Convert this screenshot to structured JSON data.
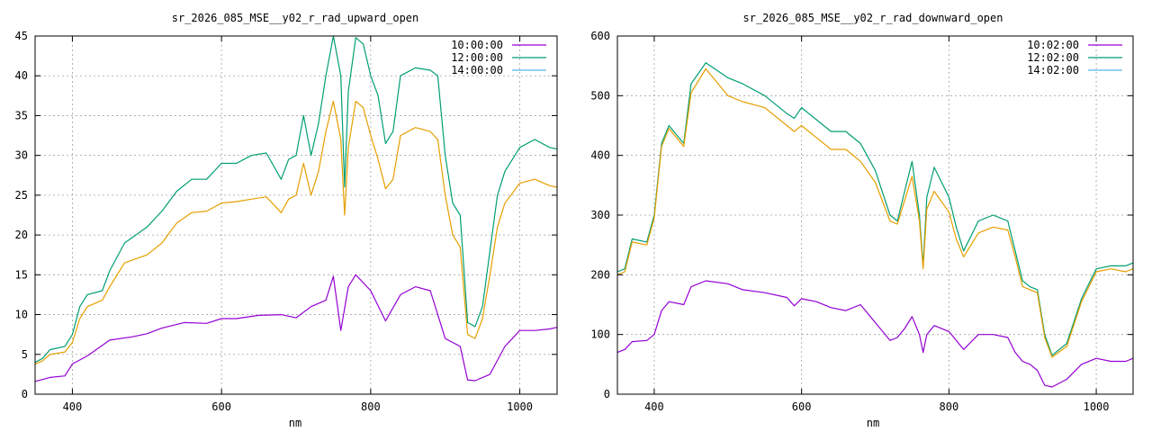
{
  "colors": {
    "series1": "#9400d3",
    "series2": "#009e73",
    "series3": "#56b4e9",
    "orange": "#e69f00"
  },
  "chart_data": [
    {
      "type": "line",
      "title": "sr_2026_085_MSE__y02_r_rad_upward_open",
      "xlabel": "nm",
      "ylabel": "",
      "xlim": [
        350,
        1050
      ],
      "ylim": [
        0,
        45
      ],
      "xticks": [
        400,
        600,
        800,
        1000
      ],
      "yticks": [
        0,
        5,
        10,
        15,
        20,
        25,
        30,
        35,
        40,
        45
      ],
      "grid": true,
      "legend_position": "top-right",
      "legend": [
        "10:00:00",
        "12:00:00",
        "14:00:00"
      ],
      "series": [
        {
          "name": "10:00:00",
          "color": "#9400d3",
          "x": [
            350,
            370,
            390,
            400,
            420,
            450,
            480,
            500,
            520,
            550,
            580,
            600,
            620,
            650,
            680,
            700,
            720,
            740,
            750,
            760,
            770,
            780,
            800,
            820,
            840,
            860,
            880,
            900,
            920,
            930,
            940,
            960,
            980,
            1000,
            1020,
            1040,
            1050
          ],
          "y": [
            1.6,
            2.1,
            2.3,
            3.8,
            4.8,
            6.8,
            7.2,
            7.6,
            8.3,
            9.0,
            8.9,
            9.5,
            9.5,
            9.9,
            10.0,
            9.6,
            11.0,
            11.8,
            14.8,
            8.0,
            13.5,
            15.0,
            13.0,
            9.2,
            12.5,
            13.5,
            13.0,
            7.0,
            6.0,
            1.8,
            1.7,
            2.5,
            6.0,
            8.0,
            8.0,
            8.2,
            8.4
          ]
        },
        {
          "name": "12:00:00",
          "color": "#009e73",
          "x": [
            350,
            360,
            370,
            390,
            400,
            410,
            420,
            440,
            450,
            470,
            500,
            520,
            540,
            560,
            580,
            600,
            620,
            640,
            660,
            680,
            690,
            700,
            710,
            720,
            730,
            740,
            750,
            760,
            765,
            770,
            780,
            790,
            800,
            810,
            820,
            830,
            840,
            860,
            880,
            890,
            900,
            910,
            920,
            930,
            940,
            950,
            960,
            970,
            980,
            1000,
            1020,
            1040,
            1050
          ],
          "y": [
            4.0,
            4.5,
            5.6,
            6.0,
            7.5,
            11.0,
            12.5,
            13.0,
            15.5,
            19.0,
            21.0,
            23.0,
            25.5,
            27.0,
            27.0,
            29.0,
            29.0,
            30.0,
            30.3,
            27.0,
            29.5,
            30.0,
            35.0,
            30.0,
            34.0,
            40.0,
            45.0,
            40.0,
            26.0,
            38.0,
            44.8,
            44.0,
            40.0,
            37.5,
            31.5,
            33.0,
            40.0,
            41.0,
            40.7,
            40.0,
            30.0,
            24.0,
            22.5,
            9.0,
            8.5,
            11.0,
            18.0,
            25.0,
            28.0,
            31.0,
            32.0,
            31.0,
            30.8
          ]
        },
        {
          "name": "14:00:00",
          "color": "#e69f00",
          "x": [
            350,
            360,
            370,
            390,
            400,
            410,
            420,
            440,
            450,
            470,
            500,
            520,
            540,
            560,
            580,
            600,
            620,
            640,
            660,
            680,
            690,
            700,
            710,
            720,
            730,
            740,
            750,
            760,
            765,
            770,
            780,
            790,
            800,
            810,
            820,
            830,
            840,
            860,
            880,
            890,
            900,
            910,
            920,
            930,
            940,
            950,
            960,
            970,
            980,
            1000,
            1020,
            1040,
            1050
          ],
          "y": [
            3.8,
            4.2,
            5.0,
            5.3,
            6.5,
            9.5,
            11.0,
            11.8,
            13.5,
            16.5,
            17.5,
            19.0,
            21.5,
            22.8,
            23.0,
            24.0,
            24.2,
            24.5,
            24.8,
            22.8,
            24.5,
            25.0,
            29.0,
            25.0,
            28.0,
            33.0,
            36.8,
            32.0,
            22.5,
            31.0,
            36.8,
            36.0,
            32.5,
            29.5,
            25.8,
            27.0,
            32.5,
            33.5,
            33.0,
            32.0,
            25.0,
            20.0,
            18.5,
            7.5,
            7.0,
            9.5,
            15.0,
            21.0,
            24.0,
            26.5,
            27.0,
            26.2,
            26.0
          ]
        }
      ]
    },
    {
      "type": "line",
      "title": "sr_2026_085_MSE__y02_r_rad_downward_open",
      "xlabel": "nm",
      "ylabel": "",
      "xlim": [
        350,
        1050
      ],
      "ylim": [
        0,
        600
      ],
      "xticks": [
        400,
        600,
        800,
        1000
      ],
      "yticks": [
        0,
        100,
        200,
        300,
        400,
        500,
        600
      ],
      "grid": true,
      "legend_position": "top-right",
      "legend": [
        "10:02:00",
        "12:02:00",
        "14:02:00"
      ],
      "series": [
        {
          "name": "10:02:00",
          "color": "#9400d3",
          "x": [
            350,
            360,
            370,
            390,
            400,
            410,
            420,
            440,
            450,
            470,
            500,
            520,
            550,
            580,
            590,
            600,
            620,
            640,
            660,
            680,
            700,
            720,
            730,
            740,
            750,
            760,
            765,
            770,
            780,
            800,
            810,
            820,
            840,
            860,
            880,
            890,
            900,
            910,
            920,
            930,
            940,
            960,
            980,
            1000,
            1020,
            1040,
            1050
          ],
          "y": [
            70,
            75,
            88,
            90,
            100,
            140,
            155,
            150,
            180,
            190,
            185,
            175,
            170,
            162,
            148,
            160,
            155,
            145,
            140,
            150,
            120,
            90,
            95,
            110,
            130,
            100,
            70,
            100,
            115,
            105,
            90,
            75,
            100,
            100,
            95,
            70,
            55,
            50,
            40,
            15,
            12,
            25,
            50,
            60,
            55,
            55,
            60
          ]
        },
        {
          "name": "12:02:00",
          "color": "#009e73",
          "x": [
            350,
            360,
            370,
            390,
            400,
            410,
            420,
            440,
            450,
            470,
            500,
            520,
            550,
            580,
            590,
            600,
            620,
            640,
            660,
            680,
            700,
            720,
            730,
            740,
            750,
            760,
            765,
            770,
            780,
            800,
            810,
            820,
            840,
            860,
            880,
            890,
            900,
            910,
            920,
            930,
            940,
            960,
            980,
            1000,
            1020,
            1040,
            1050
          ],
          "y": [
            205,
            210,
            260,
            255,
            300,
            420,
            450,
            420,
            520,
            555,
            530,
            520,
            500,
            470,
            462,
            480,
            460,
            440,
            440,
            420,
            375,
            300,
            290,
            340,
            390,
            300,
            215,
            330,
            380,
            330,
            280,
            240,
            290,
            300,
            290,
            240,
            190,
            180,
            175,
            100,
            65,
            85,
            160,
            210,
            215,
            215,
            220
          ]
        },
        {
          "name": "14:02:00",
          "color": "#e69f00",
          "x": [
            350,
            360,
            370,
            390,
            400,
            410,
            420,
            440,
            450,
            470,
            500,
            520,
            550,
            580,
            590,
            600,
            620,
            640,
            660,
            680,
            700,
            720,
            730,
            740,
            750,
            760,
            765,
            770,
            780,
            800,
            810,
            820,
            840,
            860,
            880,
            890,
            900,
            910,
            920,
            930,
            940,
            960,
            980,
            1000,
            1020,
            1040,
            1050
          ],
          "y": [
            200,
            205,
            255,
            250,
            295,
            415,
            445,
            415,
            505,
            545,
            500,
            490,
            480,
            450,
            440,
            450,
            430,
            410,
            410,
            390,
            355,
            290,
            285,
            325,
            365,
            290,
            210,
            310,
            340,
            305,
            260,
            230,
            270,
            280,
            275,
            230,
            180,
            175,
            170,
            95,
            62,
            80,
            155,
            205,
            210,
            205,
            210
          ]
        }
      ]
    }
  ]
}
